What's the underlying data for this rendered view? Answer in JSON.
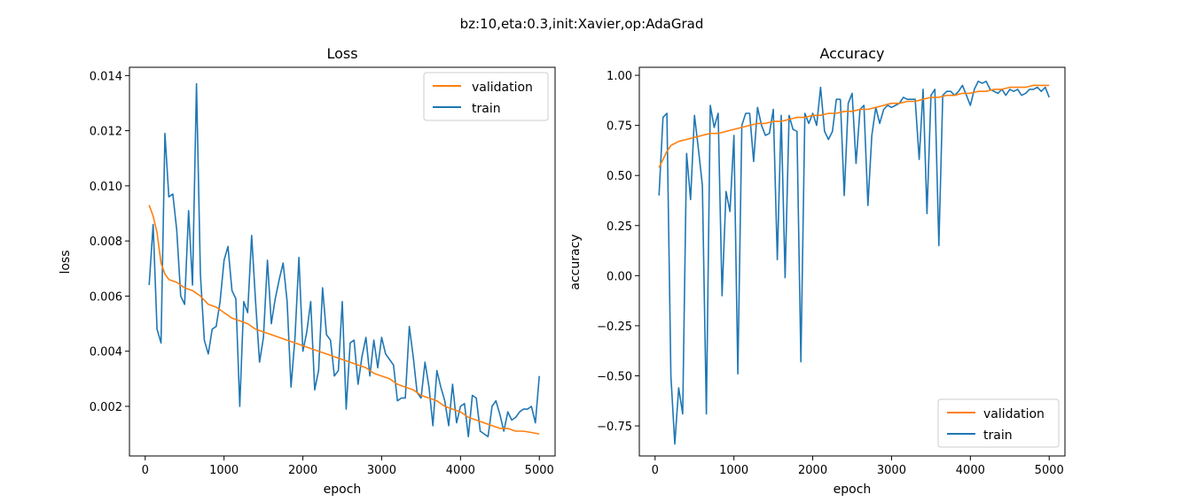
{
  "figure": {
    "suptitle": "bz:10,eta:0.3,init:Xavier,op:AdaGrad"
  },
  "colors": {
    "validation": "#ff7f0e",
    "train": "#1f77b4"
  },
  "chart_data": [
    {
      "type": "line",
      "title": "Loss",
      "xlabel": "epoch",
      "ylabel": "loss",
      "xlim": [
        -200,
        5200
      ],
      "ylim": [
        0.0002,
        0.0143
      ],
      "xticks": [
        0,
        1000,
        2000,
        3000,
        4000,
        5000
      ],
      "xtick_labels": [
        "0",
        "1000",
        "2000",
        "3000",
        "4000",
        "5000"
      ],
      "yticks": [
        0.002,
        0.004,
        0.006,
        0.008,
        0.01,
        0.012,
        0.014
      ],
      "ytick_labels": [
        "0.002",
        "0.004",
        "0.006",
        "0.008",
        "0.010",
        "0.012",
        "0.014"
      ],
      "legend": {
        "position": "upper-right",
        "entries": [
          "validation",
          "train"
        ]
      },
      "series": [
        {
          "name": "validation",
          "color": "#ff7f0e",
          "x": [
            50,
            100,
            150,
            200,
            250,
            300,
            400,
            500,
            600,
            700,
            800,
            900,
            1000,
            1100,
            1200,
            1300,
            1400,
            1500,
            1600,
            1700,
            1800,
            1900,
            2000,
            2100,
            2200,
            2300,
            2400,
            2500,
            2600,
            2700,
            2800,
            2900,
            3000,
            3100,
            3200,
            3300,
            3400,
            3500,
            3600,
            3700,
            3800,
            3900,
            4000,
            4100,
            4200,
            4300,
            4400,
            4500,
            4600,
            4700,
            4800,
            4900,
            5000
          ],
          "y": [
            0.0093,
            0.0089,
            0.0083,
            0.0072,
            0.0068,
            0.0066,
            0.0065,
            0.0063,
            0.0062,
            0.006,
            0.0057,
            0.0056,
            0.0054,
            0.0052,
            0.0051,
            0.005,
            0.0048,
            0.0047,
            0.0046,
            0.0045,
            0.0044,
            0.0043,
            0.0042,
            0.0041,
            0.004,
            0.0039,
            0.0038,
            0.0037,
            0.0036,
            0.0035,
            0.0034,
            0.0032,
            0.0031,
            0.003,
            0.0028,
            0.0027,
            0.0026,
            0.0024,
            0.0023,
            0.0022,
            0.002,
            0.0019,
            0.0018,
            0.0016,
            0.0015,
            0.0014,
            0.0013,
            0.0012,
            0.0012,
            0.0011,
            0.0011,
            0.00105,
            0.001
          ]
        },
        {
          "name": "train",
          "color": "#1f77b4",
          "x": [
            50,
            100,
            150,
            200,
            250,
            300,
            350,
            400,
            450,
            500,
            550,
            600,
            650,
            700,
            750,
            800,
            850,
            900,
            950,
            1000,
            1050,
            1100,
            1150,
            1200,
            1250,
            1300,
            1350,
            1400,
            1450,
            1500,
            1550,
            1600,
            1650,
            1700,
            1750,
            1800,
            1850,
            1900,
            1950,
            2000,
            2050,
            2100,
            2150,
            2200,
            2250,
            2300,
            2350,
            2400,
            2450,
            2500,
            2550,
            2600,
            2650,
            2700,
            2750,
            2800,
            2850,
            2900,
            2950,
            3000,
            3050,
            3100,
            3150,
            3200,
            3250,
            3300,
            3350,
            3400,
            3450,
            3500,
            3550,
            3600,
            3650,
            3700,
            3750,
            3800,
            3850,
            3900,
            3950,
            4000,
            4050,
            4100,
            4150,
            4200,
            4250,
            4300,
            4350,
            4400,
            4450,
            4500,
            4550,
            4600,
            4650,
            4700,
            4750,
            4800,
            4850,
            4900,
            4950,
            5000
          ],
          "y": [
            0.0064,
            0.0086,
            0.0048,
            0.0043,
            0.0119,
            0.0096,
            0.0097,
            0.0084,
            0.006,
            0.0057,
            0.0091,
            0.0064,
            0.0137,
            0.0068,
            0.0044,
            0.0039,
            0.0048,
            0.0049,
            0.0058,
            0.0073,
            0.0078,
            0.0062,
            0.0059,
            0.002,
            0.0058,
            0.0054,
            0.0082,
            0.0058,
            0.0036,
            0.0045,
            0.0073,
            0.005,
            0.0059,
            0.0066,
            0.0072,
            0.0058,
            0.0027,
            0.0045,
            0.0074,
            0.004,
            0.0047,
            0.0058,
            0.0026,
            0.0033,
            0.0063,
            0.0046,
            0.0044,
            0.0031,
            0.0033,
            0.0058,
            0.0019,
            0.0043,
            0.0044,
            0.0028,
            0.0038,
            0.0045,
            0.0031,
            0.0044,
            0.0034,
            0.0045,
            0.0039,
            0.0037,
            0.0035,
            0.0022,
            0.0023,
            0.0023,
            0.0049,
            0.0038,
            0.0025,
            0.0023,
            0.0036,
            0.0027,
            0.0013,
            0.0033,
            0.0027,
            0.0022,
            0.0013,
            0.0028,
            0.0014,
            0.002,
            0.0021,
            0.0009,
            0.0024,
            0.0023,
            0.0011,
            0.001,
            0.0009,
            0.002,
            0.0022,
            0.0017,
            0.0011,
            0.0018,
            0.0015,
            0.0016,
            0.0018,
            0.0019,
            0.0019,
            0.002,
            0.0014,
            0.0031
          ]
        }
      ]
    },
    {
      "type": "line",
      "title": "Accuracy",
      "xlabel": "epoch",
      "ylabel": "accuracy",
      "xlim": [
        -200,
        5200
      ],
      "ylim": [
        -0.9,
        1.04
      ],
      "xticks": [
        0,
        1000,
        2000,
        3000,
        4000,
        5000
      ],
      "xtick_labels": [
        "0",
        "1000",
        "2000",
        "3000",
        "4000",
        "5000"
      ],
      "yticks": [
        -0.75,
        -0.5,
        -0.25,
        0.0,
        0.25,
        0.5,
        0.75,
        1.0
      ],
      "ytick_labels": [
        "−0.75",
        "−0.50",
        "−0.25",
        "0.00",
        "0.25",
        "0.50",
        "0.75",
        "1.00"
      ],
      "legend": {
        "position": "lower-right",
        "entries": [
          "validation",
          "train"
        ]
      },
      "series": [
        {
          "name": "validation",
          "color": "#ff7f0e",
          "x": [
            50,
            100,
            150,
            200,
            250,
            300,
            400,
            500,
            600,
            700,
            800,
            900,
            1000,
            1100,
            1200,
            1300,
            1400,
            1500,
            1600,
            1700,
            1800,
            1900,
            2000,
            2100,
            2200,
            2300,
            2400,
            2500,
            2600,
            2700,
            2800,
            2900,
            3000,
            3100,
            3200,
            3300,
            3400,
            3500,
            3600,
            3700,
            3800,
            3900,
            4000,
            4100,
            4200,
            4300,
            4400,
            4500,
            4600,
            4700,
            4800,
            4900,
            5000
          ],
          "y": [
            0.54,
            0.58,
            0.62,
            0.65,
            0.66,
            0.67,
            0.68,
            0.69,
            0.7,
            0.71,
            0.71,
            0.72,
            0.73,
            0.74,
            0.75,
            0.76,
            0.76,
            0.77,
            0.77,
            0.78,
            0.79,
            0.79,
            0.8,
            0.8,
            0.81,
            0.81,
            0.82,
            0.82,
            0.83,
            0.83,
            0.84,
            0.85,
            0.86,
            0.86,
            0.87,
            0.87,
            0.88,
            0.89,
            0.89,
            0.9,
            0.9,
            0.91,
            0.91,
            0.92,
            0.92,
            0.93,
            0.93,
            0.94,
            0.94,
            0.94,
            0.95,
            0.95,
            0.95
          ]
        },
        {
          "name": "train",
          "color": "#1f77b4",
          "x": [
            50,
            100,
            150,
            200,
            250,
            300,
            350,
            400,
            450,
            500,
            550,
            600,
            650,
            700,
            750,
            800,
            850,
            900,
            950,
            1000,
            1050,
            1100,
            1150,
            1200,
            1250,
            1300,
            1350,
            1400,
            1450,
            1500,
            1550,
            1600,
            1650,
            1700,
            1750,
            1800,
            1850,
            1900,
            1950,
            2000,
            2050,
            2100,
            2150,
            2200,
            2250,
            2300,
            2350,
            2400,
            2450,
            2500,
            2550,
            2600,
            2650,
            2700,
            2750,
            2800,
            2850,
            2900,
            2950,
            3000,
            3050,
            3100,
            3150,
            3200,
            3250,
            3300,
            3350,
            3400,
            3450,
            3500,
            3550,
            3600,
            3650,
            3700,
            3750,
            3800,
            3850,
            3900,
            3950,
            4000,
            4050,
            4100,
            4150,
            4200,
            4250,
            4300,
            4350,
            4400,
            4450,
            4500,
            4550,
            4600,
            4650,
            4700,
            4750,
            4800,
            4850,
            4900,
            4950,
            5000
          ],
          "y": [
            0.4,
            0.79,
            0.81,
            -0.5,
            -0.84,
            -0.56,
            -0.69,
            0.61,
            0.38,
            0.8,
            0.63,
            0.45,
            -0.69,
            0.85,
            0.74,
            0.81,
            -0.1,
            0.42,
            0.32,
            0.7,
            -0.49,
            0.75,
            0.81,
            0.81,
            0.57,
            0.84,
            0.75,
            0.7,
            0.71,
            0.83,
            0.08,
            0.8,
            -0.01,
            0.8,
            0.73,
            0.72,
            -0.43,
            0.81,
            0.76,
            0.81,
            0.75,
            0.94,
            0.72,
            0.68,
            0.72,
            0.88,
            0.88,
            0.4,
            0.86,
            0.91,
            0.56,
            0.83,
            0.85,
            0.35,
            0.7,
            0.84,
            0.76,
            0.83,
            0.85,
            0.84,
            0.85,
            0.86,
            0.89,
            0.88,
            0.88,
            0.88,
            0.58,
            0.93,
            0.31,
            0.9,
            0.93,
            0.15,
            0.9,
            0.92,
            0.92,
            0.9,
            0.92,
            0.95,
            0.9,
            0.85,
            0.93,
            0.97,
            0.96,
            0.97,
            0.93,
            0.92,
            0.91,
            0.93,
            0.9,
            0.93,
            0.92,
            0.93,
            0.9,
            0.91,
            0.93,
            0.93,
            0.94,
            0.92,
            0.94,
            0.89
          ]
        }
      ]
    }
  ]
}
